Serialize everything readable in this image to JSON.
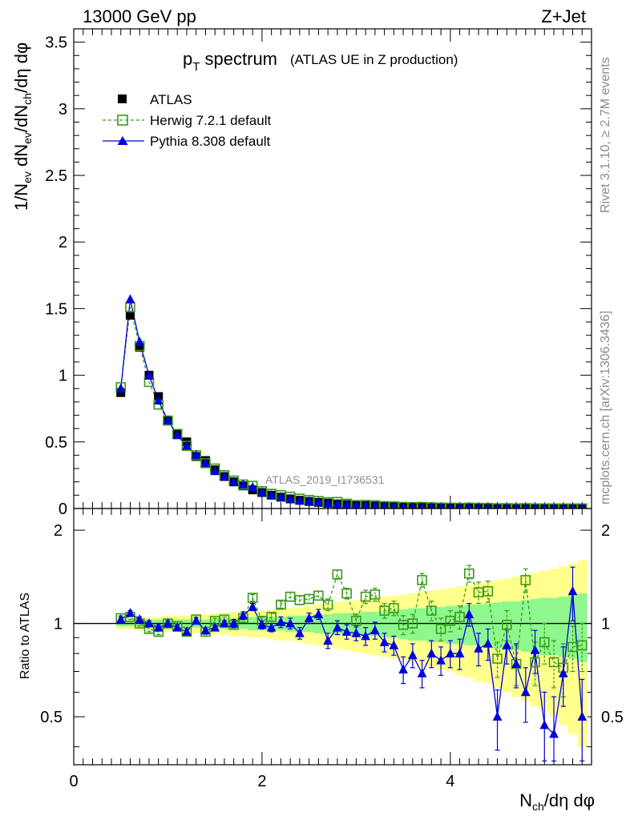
{
  "header": {
    "energy_label": "13000 GeV pp",
    "process_label": "Z+Jet"
  },
  "side_labels": {
    "rivet": "Rivet 3.1.10, ≥ 2.7M events",
    "mcplots": "mcplots.cern.ch [arXiv:1306.3436]"
  },
  "colors": {
    "data": "#000000",
    "herwig": "#3a9a1a",
    "pythia": "#0000dd",
    "band_green": "#8ef88e",
    "band_yellow": "#ffff8c"
  },
  "chart_data": [
    {
      "type": "scatter",
      "title": "p_T spectrum",
      "title_main": "p",
      "title_sub": "T",
      "title_word": " spectrum",
      "subtitle": "(ATLAS UE in Z production)",
      "ylabel": "1/N_ev dN_ev/dN_ch/dη dφ",
      "watermark": "ATLAS_2019_I1736531",
      "xlim": [
        0,
        5.5
      ],
      "ylim": [
        0,
        3.6
      ],
      "yticks": [
        "0",
        "0.5",
        "1",
        "1.5",
        "2",
        "2.5",
        "3",
        "3.5"
      ],
      "legend_position": "top-left",
      "x": [
        0.5,
        0.6,
        0.7,
        0.8,
        0.9,
        1.0,
        1.1,
        1.2,
        1.3,
        1.4,
        1.5,
        1.6,
        1.7,
        1.8,
        1.9,
        2.0,
        2.1,
        2.2,
        2.3,
        2.4,
        2.5,
        2.6,
        2.7,
        2.8,
        2.9,
        3.0,
        3.1,
        3.2,
        3.3,
        3.4,
        3.5,
        3.6,
        3.7,
        3.8,
        3.9,
        4.0,
        4.1,
        4.2,
        4.3,
        4.4,
        4.5,
        4.6,
        4.7,
        4.8,
        4.9,
        5.0,
        5.1,
        5.2,
        5.3,
        5.4
      ],
      "series": [
        {
          "name": "ATLAS",
          "marker": "square",
          "values": [
            0.87,
            1.45,
            1.21,
            1.0,
            0.84,
            0.66,
            0.56,
            0.5,
            0.39,
            0.36,
            0.29,
            0.24,
            0.2,
            0.17,
            0.14,
            0.12,
            0.1,
            0.085,
            0.072,
            0.062,
            0.053,
            0.046,
            0.04,
            0.034,
            0.029,
            0.025,
            0.022,
            0.019,
            0.016,
            0.014,
            0.012,
            0.011,
            0.009,
            0.008,
            0.007,
            0.006,
            0.005,
            0.0045,
            0.004,
            0.0035,
            0.003,
            0.0026,
            0.0023,
            0.002,
            0.0017,
            0.0015,
            0.0013,
            0.0011,
            0.001,
            0.0009
          ]
        },
        {
          "name": "Herwig 7.2.1 default",
          "marker": "open-square",
          "values": [
            0.91,
            1.51,
            1.22,
            0.95,
            0.78,
            0.66,
            0.56,
            0.47,
            0.4,
            0.34,
            0.3,
            0.25,
            0.21,
            0.18,
            0.17,
            0.13,
            0.11,
            0.1,
            0.088,
            0.074,
            0.064,
            0.056,
            0.047,
            0.049,
            0.036,
            0.026,
            0.027,
            0.024,
            0.018,
            0.016,
            0.012,
            0.011,
            0.012,
            0.009,
            0.007,
            0.006,
            0.0052,
            0.0065,
            0.005,
            0.0044,
            0.0023,
            0.0026,
            0.0017,
            0.0027,
            0.0013,
            0.0013,
            0.001,
            0.0008,
            0.0008,
            0.0008
          ]
        },
        {
          "name": "Pythia 8.308 default",
          "marker": "triangle",
          "values": [
            0.9,
            1.57,
            1.25,
            1.0,
            0.81,
            0.66,
            0.55,
            0.47,
            0.4,
            0.34,
            0.28,
            0.24,
            0.2,
            0.18,
            0.16,
            0.12,
            0.1,
            0.086,
            0.072,
            0.058,
            0.055,
            0.049,
            0.035,
            0.033,
            0.027,
            0.023,
            0.02,
            0.018,
            0.014,
            0.012,
            0.0085,
            0.0087,
            0.0062,
            0.0064,
            0.0053,
            0.0048,
            0.004,
            0.0048,
            0.0033,
            0.003,
            0.0015,
            0.0022,
            0.0017,
            0.0012,
            0.0014,
            0.0007,
            0.0006,
            0.0008,
            0.0013,
            0.0005
          ]
        }
      ]
    },
    {
      "type": "scatter",
      "title": "",
      "xlabel": "N_ch/dη dφ",
      "ylabel": "Ratio to ATLAS",
      "xlim": [
        0,
        5.5
      ],
      "ylim": [
        0.35,
        2.35
      ],
      "xticks": [
        "0",
        "2",
        "4"
      ],
      "yticks": [
        "0.5",
        "1",
        "2"
      ],
      "x": [
        0.5,
        0.6,
        0.7,
        0.8,
        0.9,
        1.0,
        1.1,
        1.2,
        1.3,
        1.4,
        1.5,
        1.6,
        1.7,
        1.8,
        1.9,
        2.0,
        2.1,
        2.2,
        2.3,
        2.4,
        2.5,
        2.6,
        2.7,
        2.8,
        2.9,
        3.0,
        3.1,
        3.2,
        3.3,
        3.4,
        3.5,
        3.6,
        3.7,
        3.8,
        3.9,
        4.0,
        4.1,
        4.2,
        4.3,
        4.4,
        4.5,
        4.6,
        4.7,
        4.8,
        4.9,
        5.0,
        5.1,
        5.2,
        5.3,
        5.4
      ],
      "band_green_halfwidth": [
        0.02,
        0.02,
        0.02,
        0.03,
        0.03,
        0.03,
        0.03,
        0.03,
        0.03,
        0.03,
        0.04,
        0.04,
        0.04,
        0.04,
        0.05,
        0.05,
        0.05,
        0.05,
        0.06,
        0.06,
        0.06,
        0.07,
        0.07,
        0.08,
        0.08,
        0.08,
        0.09,
        0.09,
        0.1,
        0.1,
        0.11,
        0.12,
        0.12,
        0.13,
        0.13,
        0.14,
        0.14,
        0.15,
        0.15,
        0.16,
        0.17,
        0.18,
        0.18,
        0.19,
        0.2,
        0.21,
        0.21,
        0.22,
        0.23,
        0.25
      ],
      "band_yellow_halfwidth": [
        0.04,
        0.04,
        0.05,
        0.05,
        0.05,
        0.06,
        0.06,
        0.06,
        0.07,
        0.07,
        0.08,
        0.08,
        0.09,
        0.09,
        0.1,
        0.1,
        0.11,
        0.12,
        0.12,
        0.13,
        0.14,
        0.15,
        0.16,
        0.17,
        0.18,
        0.19,
        0.2,
        0.21,
        0.22,
        0.23,
        0.24,
        0.25,
        0.27,
        0.28,
        0.29,
        0.3,
        0.32,
        0.33,
        0.35,
        0.36,
        0.38,
        0.4,
        0.42,
        0.44,
        0.46,
        0.48,
        0.5,
        0.53,
        0.56,
        0.6
      ],
      "series": [
        {
          "name": "Herwig 7.2.1 default",
          "values": [
            1.04,
            1.05,
            1.0,
            0.96,
            0.94,
            1.0,
            0.98,
            0.94,
            1.03,
            0.94,
            1.02,
            1.03,
            0.99,
            1.04,
            1.21,
            1.02,
            1.05,
            1.15,
            1.22,
            1.19,
            1.2,
            1.23,
            1.15,
            1.44,
            1.25,
            1.02,
            1.22,
            1.24,
            1.1,
            1.12,
            0.99,
            1.0,
            1.38,
            1.1,
            0.96,
            1.02,
            1.05,
            1.45,
            1.26,
            1.27,
            0.77,
            0.99,
            0.74,
            1.38,
            0.75,
            0.87,
            0.75,
            0.72,
            0.84,
            0.85
          ],
          "err": [
            0.02,
            0.02,
            0.02,
            0.02,
            0.02,
            0.02,
            0.02,
            0.02,
            0.02,
            0.02,
            0.02,
            0.02,
            0.03,
            0.03,
            0.03,
            0.03,
            0.03,
            0.03,
            0.04,
            0.04,
            0.04,
            0.04,
            0.05,
            0.05,
            0.05,
            0.05,
            0.06,
            0.06,
            0.06,
            0.06,
            0.07,
            0.07,
            0.07,
            0.08,
            0.08,
            0.08,
            0.09,
            0.09,
            0.1,
            0.1,
            0.1,
            0.11,
            0.11,
            0.12,
            0.12,
            0.13,
            0.13,
            0.14,
            0.14,
            0.15
          ]
        },
        {
          "name": "Pythia 8.308 default",
          "values": [
            1.03,
            1.08,
            1.03,
            1.0,
            0.97,
            1.0,
            0.97,
            0.94,
            1.02,
            0.95,
            0.97,
            1.0,
            1.0,
            1.06,
            1.13,
            0.99,
            0.97,
            1.01,
            1.0,
            0.93,
            1.04,
            1.07,
            0.88,
            0.97,
            0.94,
            0.93,
            0.91,
            0.95,
            0.87,
            0.85,
            0.71,
            0.79,
            0.69,
            0.8,
            0.76,
            0.8,
            0.8,
            1.07,
            0.83,
            0.86,
            0.5,
            0.85,
            0.74,
            0.6,
            0.82,
            0.47,
            0.44,
            0.69,
            1.27,
            0.5
          ],
          "err": [
            0.02,
            0.02,
            0.02,
            0.02,
            0.02,
            0.02,
            0.02,
            0.02,
            0.02,
            0.02,
            0.02,
            0.02,
            0.03,
            0.03,
            0.03,
            0.03,
            0.03,
            0.04,
            0.04,
            0.04,
            0.04,
            0.04,
            0.05,
            0.05,
            0.05,
            0.05,
            0.06,
            0.06,
            0.06,
            0.06,
            0.07,
            0.07,
            0.07,
            0.08,
            0.08,
            0.08,
            0.09,
            0.09,
            0.1,
            0.1,
            0.11,
            0.11,
            0.12,
            0.12,
            0.13,
            0.13,
            0.14,
            0.15,
            0.25,
            0.16
          ]
        }
      ]
    }
  ]
}
